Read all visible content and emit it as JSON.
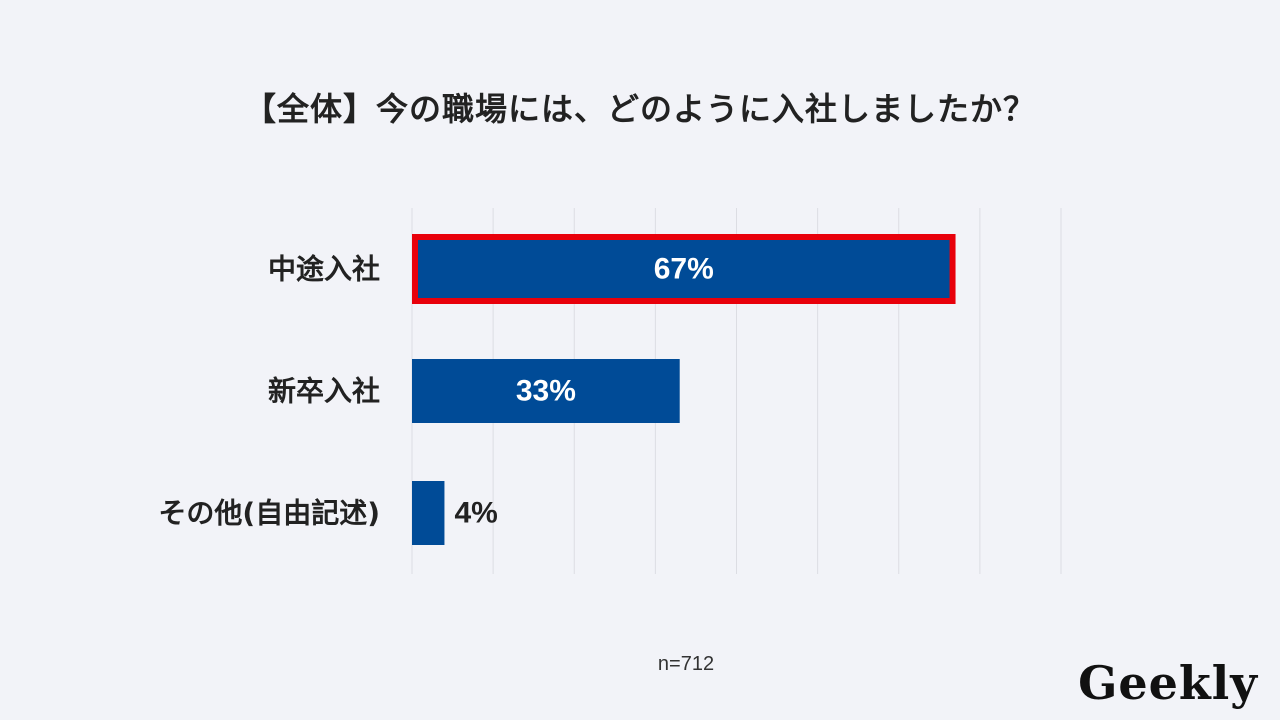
{
  "chart_data": {
    "type": "bar",
    "orientation": "horizontal",
    "title": "【全体】今の職場には、どのように入社しましたか？",
    "categories": [
      "中途入社",
      "新卒入社",
      "その他(自由記述)"
    ],
    "values": [
      67,
      33,
      4
    ],
    "value_labels": [
      "67%",
      "33%",
      "4%"
    ],
    "xlim": [
      0,
      80
    ],
    "grid": true,
    "highlight_index": 0,
    "colors": {
      "bar": "#004b97",
      "highlight_border": "#e8000b",
      "grid": "#dcdde3",
      "label_inside": "#ffffff",
      "label_outside": "#222222"
    }
  },
  "footer": {
    "n_label": "n=712"
  },
  "logo": {
    "text": "Geekly"
  }
}
